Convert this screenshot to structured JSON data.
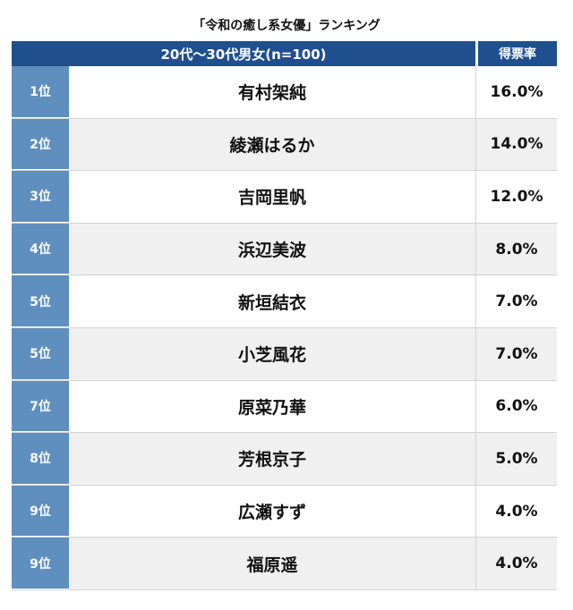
{
  "chart_data": {
    "type": "table",
    "title": "「令和の癒し系女優」ランキング",
    "header": {
      "group": "20代〜30代男女(n=100)",
      "rate": "得票率"
    },
    "rows": [
      {
        "rank": "1位",
        "name": "有村架純",
        "rate": "16.0%"
      },
      {
        "rank": "2位",
        "name": "綾瀬はるか",
        "rate": "14.0%"
      },
      {
        "rank": "3位",
        "name": "吉岡里帆",
        "rate": "12.0%"
      },
      {
        "rank": "4位",
        "name": "浜辺美波",
        "rate": "8.0%"
      },
      {
        "rank": "5位",
        "name": "新垣結衣",
        "rate": "7.0%"
      },
      {
        "rank": "5位",
        "name": "小芝風花",
        "rate": "7.0%"
      },
      {
        "rank": "7位",
        "name": "原菜乃華",
        "rate": "6.0%"
      },
      {
        "rank": "8位",
        "name": "芳根京子",
        "rate": "5.0%"
      },
      {
        "rank": "9位",
        "name": "広瀬すず",
        "rate": "4.0%"
      },
      {
        "rank": "9位",
        "name": "福原遥",
        "rate": "4.0%"
      }
    ]
  }
}
